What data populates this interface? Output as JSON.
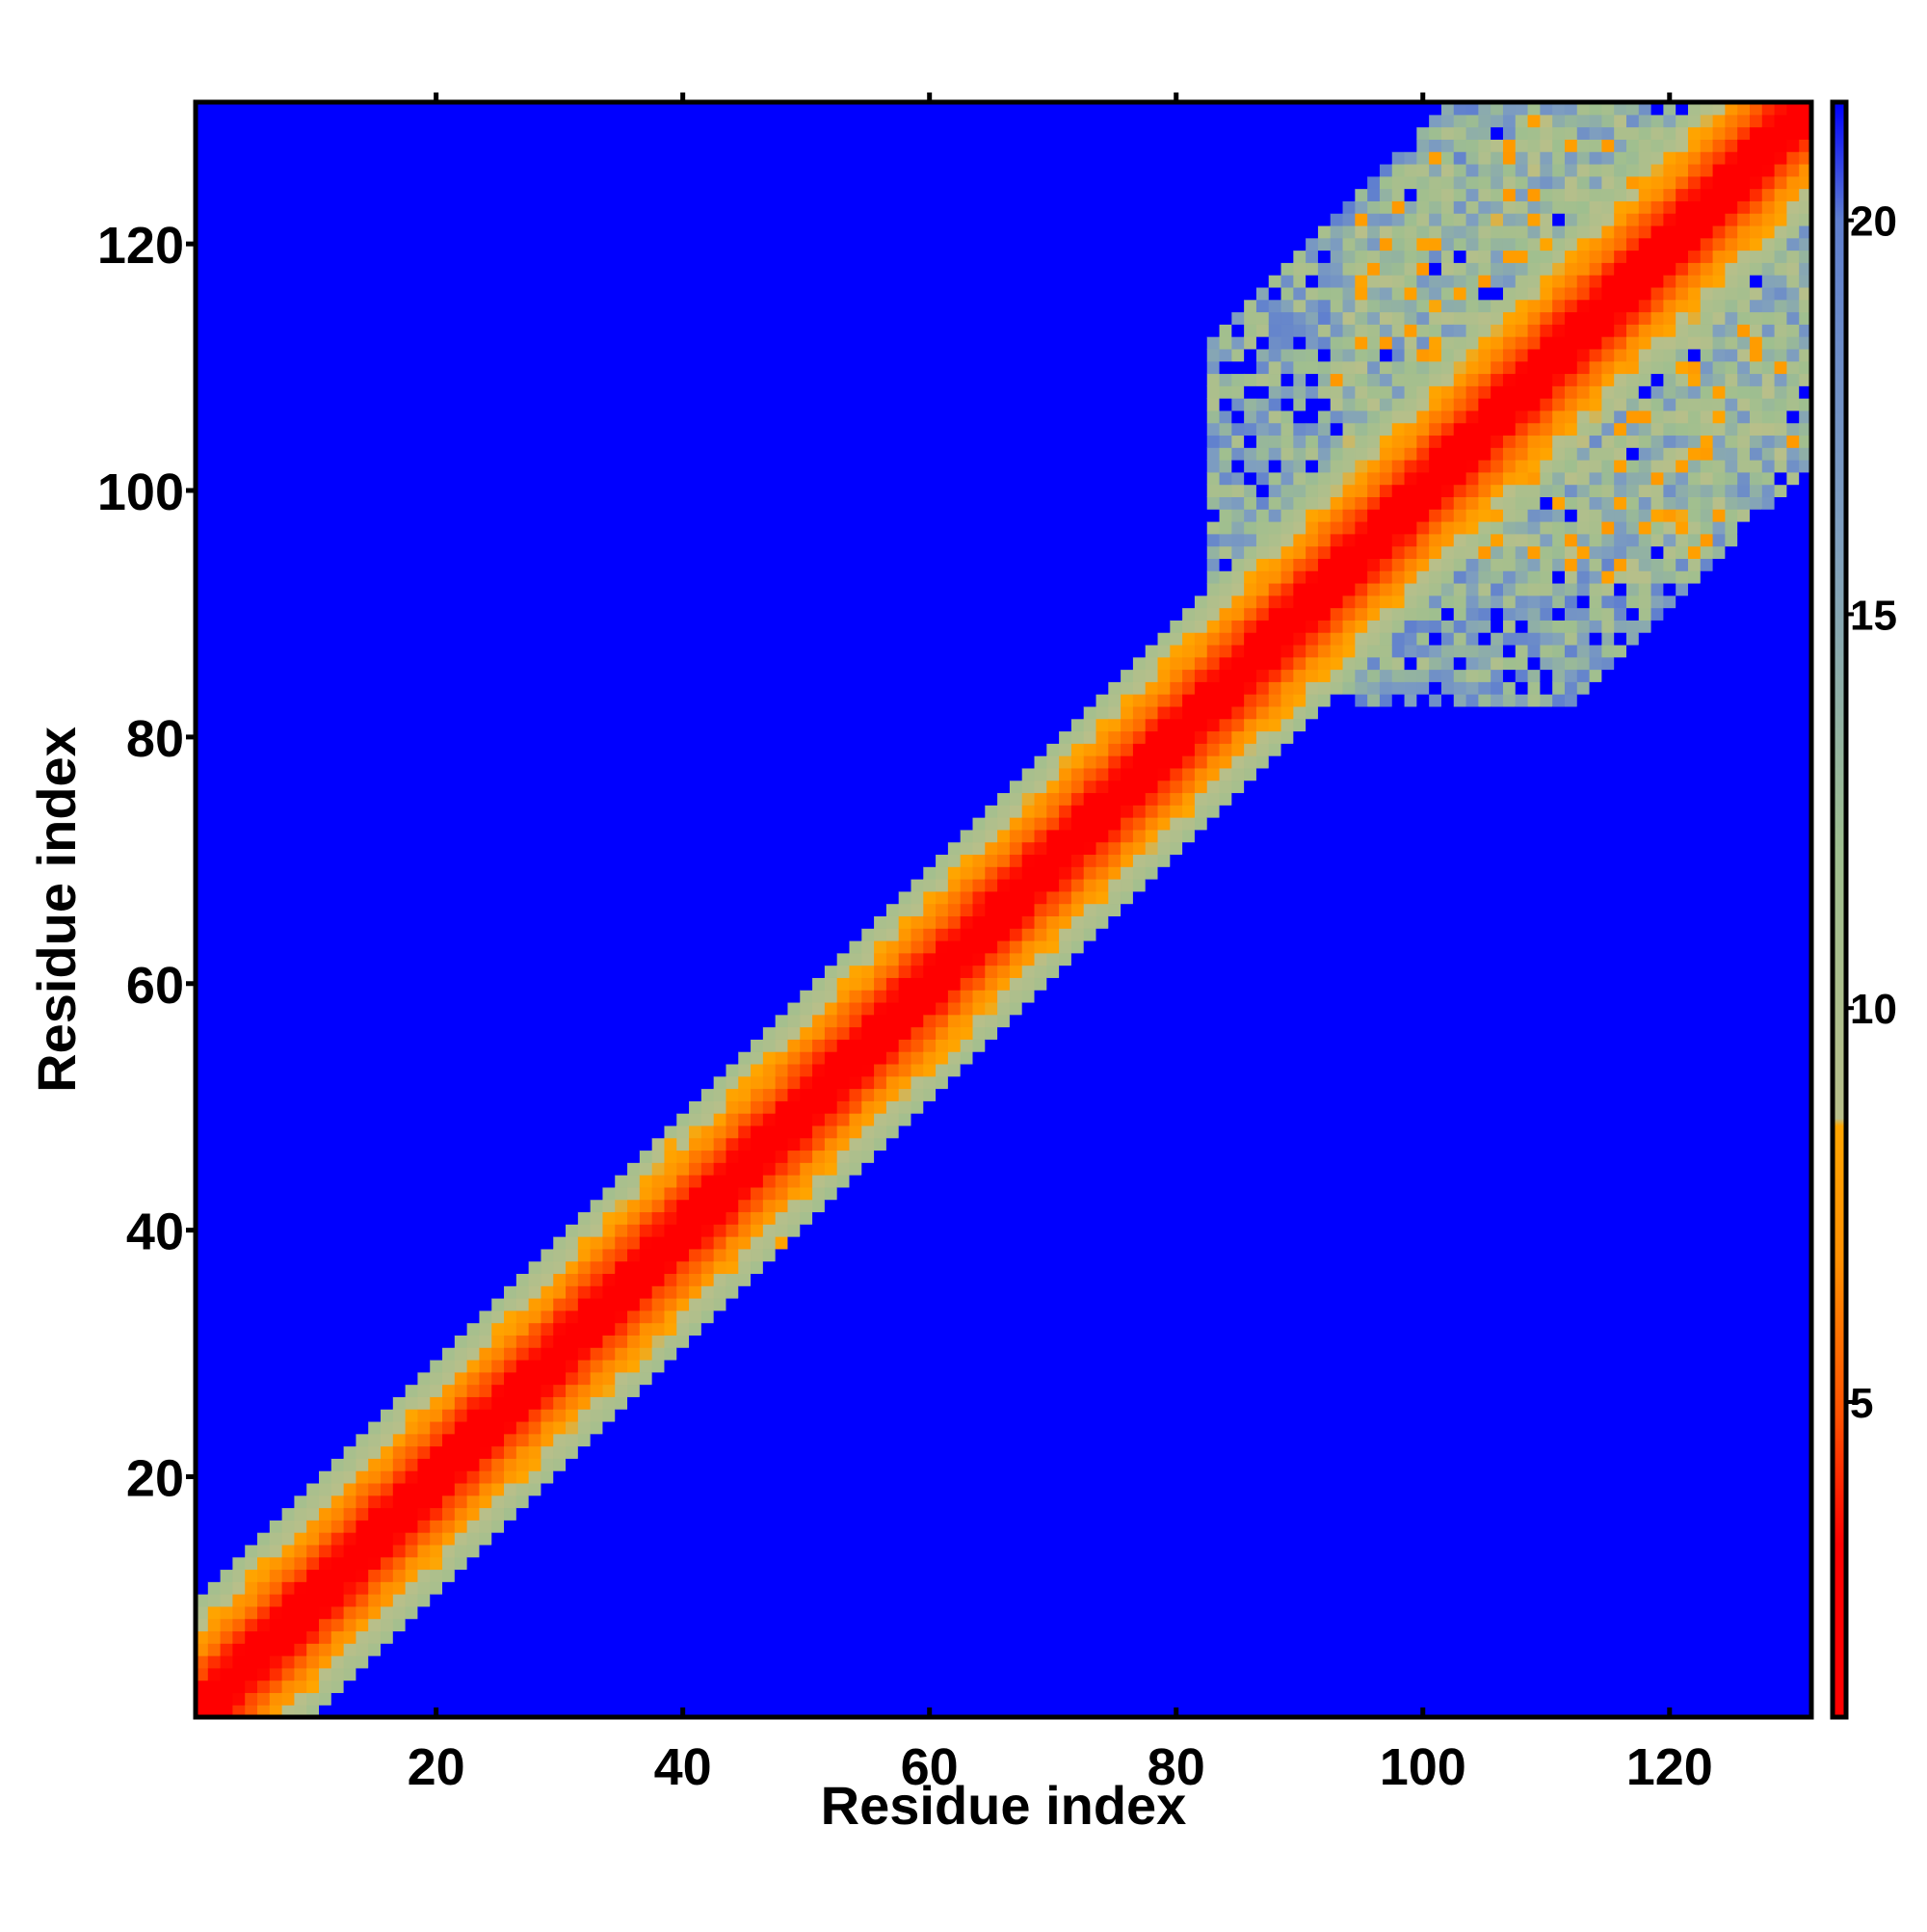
{
  "chart_data": {
    "type": "heatmap",
    "title": "",
    "xlabel": "Residue index",
    "ylabel": "Residue index",
    "n_residues": 131,
    "xlim": [
      1,
      131
    ],
    "ylim": [
      1,
      131
    ],
    "x_ticks": [
      20,
      40,
      60,
      80,
      100,
      120
    ],
    "y_ticks": [
      20,
      40,
      60,
      80,
      100,
      120
    ],
    "colorbar": {
      "range": [
        1,
        21.5
      ],
      "ticks": [
        5,
        10,
        15,
        20
      ],
      "colors": [
        {
          "value": 1,
          "color": "#ff0000"
        },
        {
          "value": 3.2,
          "color": "#ff0000"
        },
        {
          "value": 4.8,
          "color": "#ff5000"
        },
        {
          "value": 6.8,
          "color": "#ff9000"
        },
        {
          "value": 8.5,
          "color": "#ffa500"
        },
        {
          "value": 8.6,
          "color": "#b8bf8a"
        },
        {
          "value": 12,
          "color": "#9fbf8f"
        },
        {
          "value": 16,
          "color": "#7f9fbf"
        },
        {
          "value": 20,
          "color": "#5f7fcf"
        },
        {
          "value": 21.5,
          "color": "#0000ff"
        }
      ]
    },
    "description_values": {
      "diagonal_distance": 1,
      "background_distance": 21.5,
      "band_halfwidth_residues": 9,
      "contact_patches": [
        {
          "x_center": 42,
          "y_center": 42,
          "spread": 7
        },
        {
          "x_center": 74,
          "y_center": 74,
          "spread": 5
        },
        {
          "x_center": 112,
          "y_center": 112,
          "spread": 20
        }
      ]
    }
  }
}
